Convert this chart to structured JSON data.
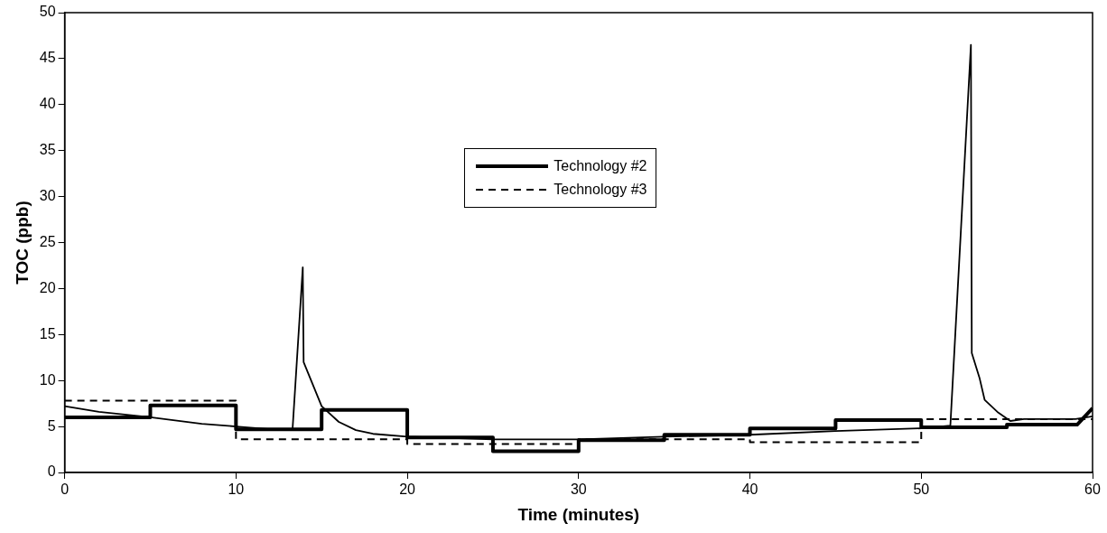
{
  "chart_data": {
    "type": "line",
    "xlabel": "Time (minutes)",
    "ylabel": "TOC (ppb)",
    "xlim": [
      0,
      60
    ],
    "xticks": [
      0,
      10,
      20,
      30,
      40,
      50,
      60
    ],
    "ylim": [
      0,
      50
    ],
    "yticks": [
      0,
      5,
      10,
      15,
      20,
      25,
      30,
      35,
      40,
      45,
      50
    ],
    "grid": false,
    "legend": "center",
    "marker": "none",
    "series": [
      {
        "color": "#000000",
        "line_style": "solid",
        "x": [
          0,
          2,
          5,
          8,
          10,
          12,
          13.3,
          13.9,
          13.95,
          14.5,
          15,
          16,
          17,
          18,
          20,
          25,
          30,
          35,
          40,
          45,
          50,
          51.7,
          52.9,
          52.95,
          53.4,
          53.7,
          54.5,
          55.2,
          56,
          58,
          59,
          60
        ],
        "values": [
          7.2,
          6.6,
          6.0,
          5.3,
          5.0,
          4.7,
          4.6,
          22.3,
          12.0,
          9.5,
          7.2,
          5.5,
          4.6,
          4.2,
          3.9,
          3.6,
          3.6,
          3.9,
          4.1,
          4.5,
          4.8,
          5.1,
          46.5,
          13.0,
          10.3,
          7.9,
          6.5,
          5.6,
          5.8,
          5.8,
          5.8,
          6.1
        ]
      },
      {
        "name": "Technology #2",
        "color": "#000000",
        "line_style": "solid",
        "x": [
          0,
          5,
          5,
          10,
          10,
          15,
          15,
          20,
          20,
          25,
          25,
          30,
          30,
          35,
          35,
          40,
          40,
          45,
          45,
          50,
          50,
          55,
          55,
          59.1,
          60
        ],
        "values": [
          6.0,
          6.0,
          7.3,
          7.3,
          4.7,
          4.7,
          6.8,
          6.8,
          3.8,
          3.8,
          2.3,
          2.3,
          3.5,
          3.5,
          4.1,
          4.1,
          4.8,
          4.8,
          5.7,
          5.7,
          4.9,
          4.9,
          5.2,
          5.2,
          7.0
        ]
      },
      {
        "name": "Technology #3",
        "color": "#000000",
        "line_style": "dashed",
        "x": [
          0,
          10,
          10,
          20,
          20,
          30,
          30,
          40,
          40,
          50,
          50,
          60
        ],
        "values": [
          7.8,
          7.8,
          3.6,
          3.6,
          3.1,
          3.1,
          3.6,
          3.6,
          3.3,
          3.3,
          5.8,
          5.8
        ]
      }
    ]
  }
}
